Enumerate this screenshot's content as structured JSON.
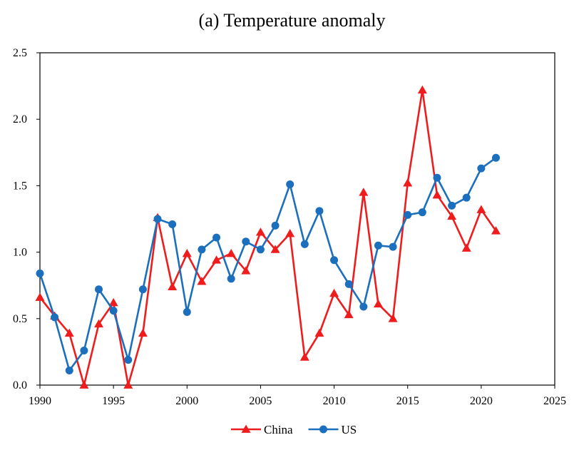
{
  "chart_data": {
    "type": "line",
    "title": "(a) Temperature anomaly",
    "xlabel": "",
    "ylabel": "",
    "xlim": [
      1990,
      2025
    ],
    "ylim": [
      0.0,
      2.5
    ],
    "xticks": [
      1990,
      1995,
      2000,
      2005,
      2010,
      2015,
      2020,
      2025
    ],
    "yticks": [
      "0.0",
      "0.5",
      "1.0",
      "1.5",
      "2.0",
      "2.5"
    ],
    "grid": false,
    "legend_position": "bottom-center",
    "x": [
      1990,
      1991,
      1992,
      1993,
      1994,
      1995,
      1996,
      1997,
      1998,
      1999,
      2000,
      2001,
      2002,
      2003,
      2004,
      2005,
      2006,
      2007,
      2008,
      2009,
      2010,
      2011,
      2012,
      2013,
      2014,
      2015,
      2016,
      2017,
      2018,
      2019,
      2020,
      2021
    ],
    "series": [
      {
        "name": "China",
        "color": "#ee1c1c",
        "marker": "triangle",
        "values": [
          0.66,
          0.52,
          0.39,
          0.0,
          0.46,
          0.62,
          0.0,
          0.39,
          1.26,
          0.74,
          0.99,
          0.78,
          0.94,
          0.99,
          0.86,
          1.15,
          1.02,
          1.14,
          0.21,
          0.39,
          0.69,
          0.53,
          1.45,
          0.61,
          0.5,
          1.52,
          2.22,
          1.43,
          1.27,
          1.03,
          1.32,
          1.16
        ]
      },
      {
        "name": "US",
        "color": "#1b6fbd",
        "marker": "circle",
        "values": [
          0.84,
          0.51,
          0.11,
          0.26,
          0.72,
          0.56,
          0.19,
          0.72,
          1.25,
          1.21,
          0.55,
          1.02,
          1.11,
          0.8,
          1.08,
          1.02,
          1.2,
          1.51,
          1.06,
          1.31,
          0.94,
          0.76,
          0.59,
          1.05,
          1.04,
          1.28,
          1.3,
          1.56,
          1.35,
          1.41,
          1.63,
          1.71
        ]
      }
    ]
  }
}
